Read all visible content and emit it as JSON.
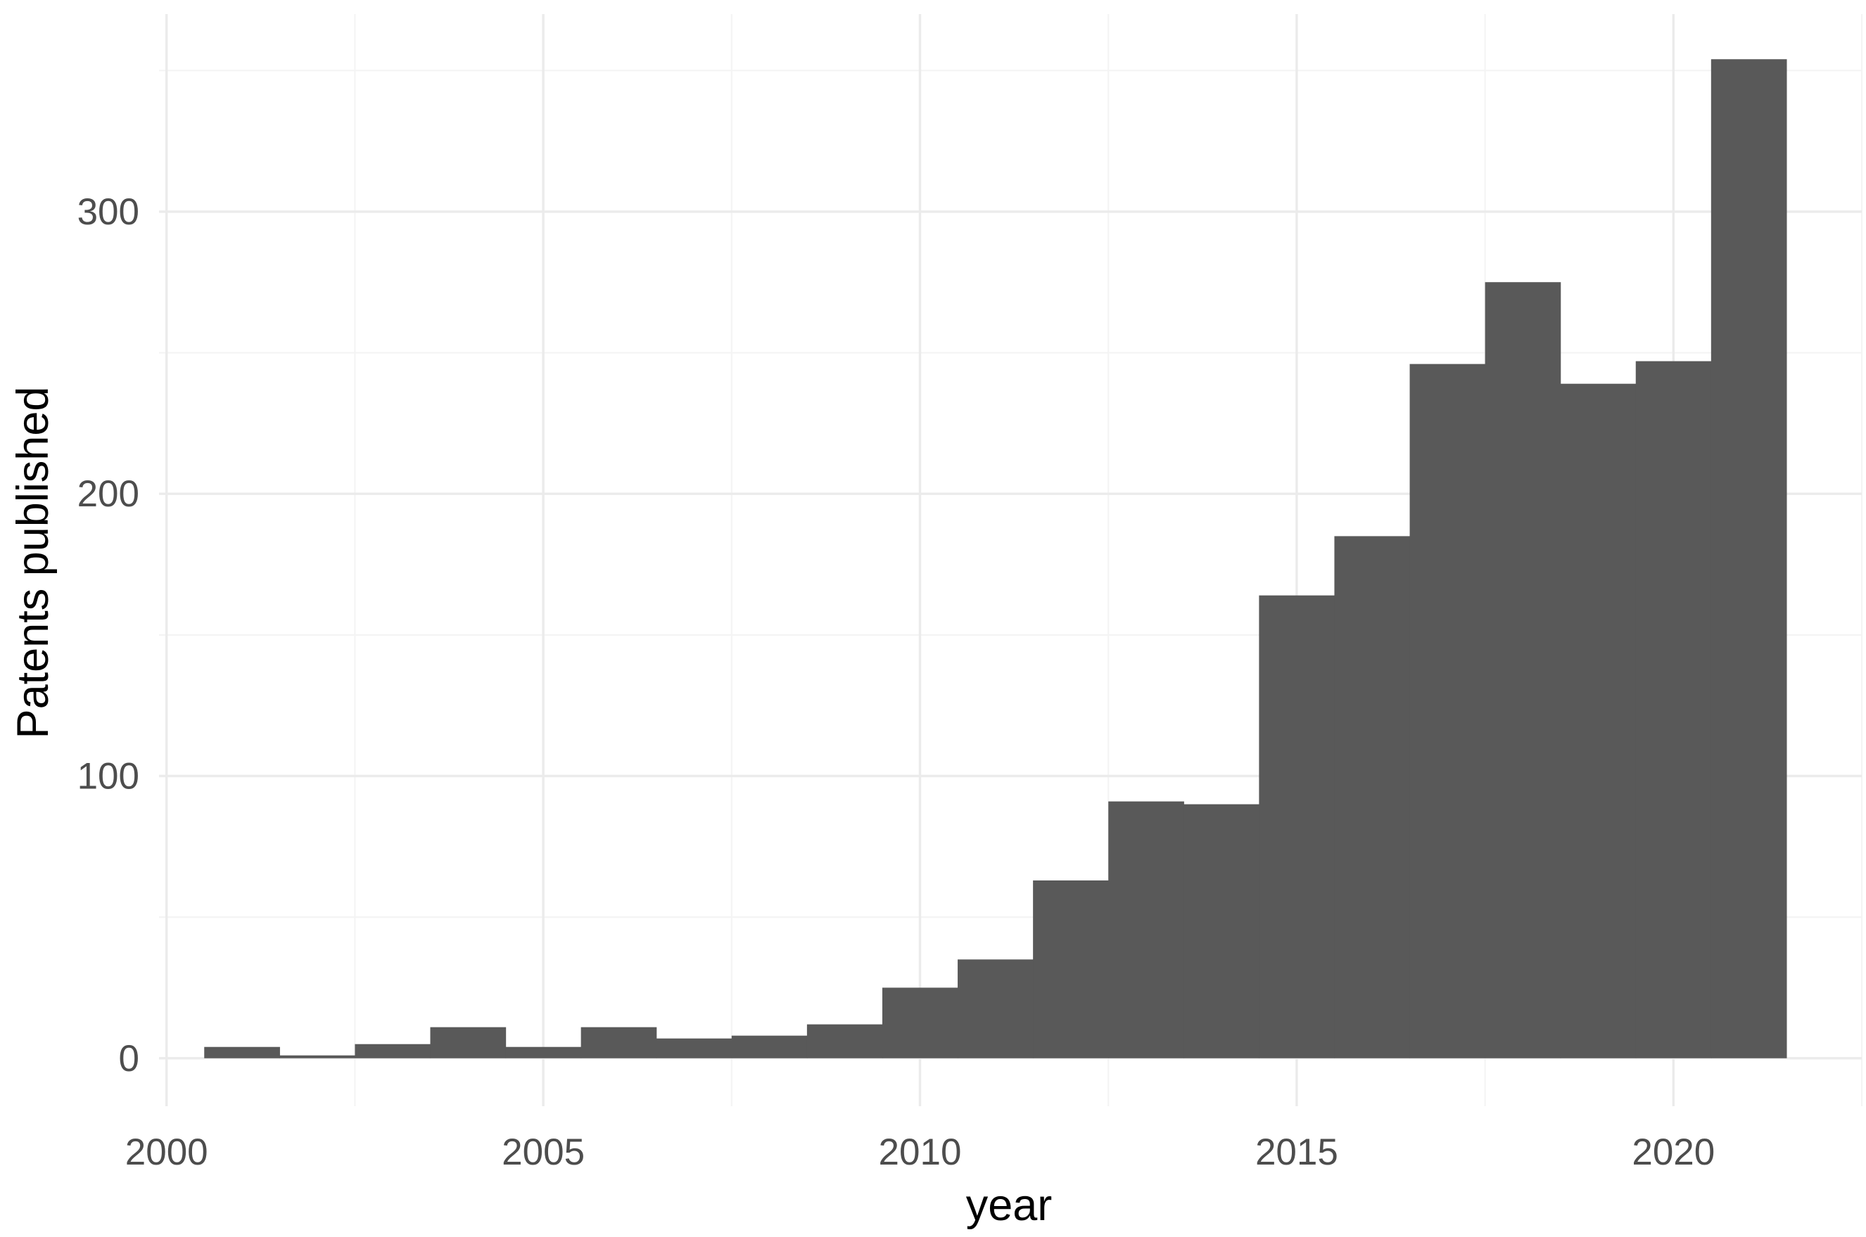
{
  "chart_data": {
    "type": "bar",
    "xlabel": "year",
    "ylabel": "Patents published",
    "x": [
      2001,
      2002,
      2003,
      2004,
      2005,
      2006,
      2007,
      2008,
      2009,
      2010,
      2011,
      2012,
      2013,
      2014,
      2015,
      2016,
      2017,
      2018,
      2019,
      2020,
      2021
    ],
    "values": [
      4,
      1,
      5,
      11,
      4,
      11,
      7,
      8,
      12,
      25,
      35,
      63,
      91,
      90,
      164,
      185,
      246,
      275,
      239,
      247,
      354
    ],
    "xlim": [
      1999.9,
      2022.5
    ],
    "ylim": [
      -17,
      370
    ],
    "x_ticks": [
      2000,
      2005,
      2010,
      2015,
      2020
    ],
    "x_tick_labels": [
      "2000",
      "2005",
      "2010",
      "2015",
      "2020"
    ],
    "y_ticks": [
      0,
      100,
      200,
      300
    ],
    "y_tick_labels": [
      "0",
      "100",
      "200",
      "300"
    ],
    "grid": true,
    "legend": "none",
    "bar_color": "#595959",
    "grid_color": "#ebebeb",
    "background": "#ffffff"
  }
}
